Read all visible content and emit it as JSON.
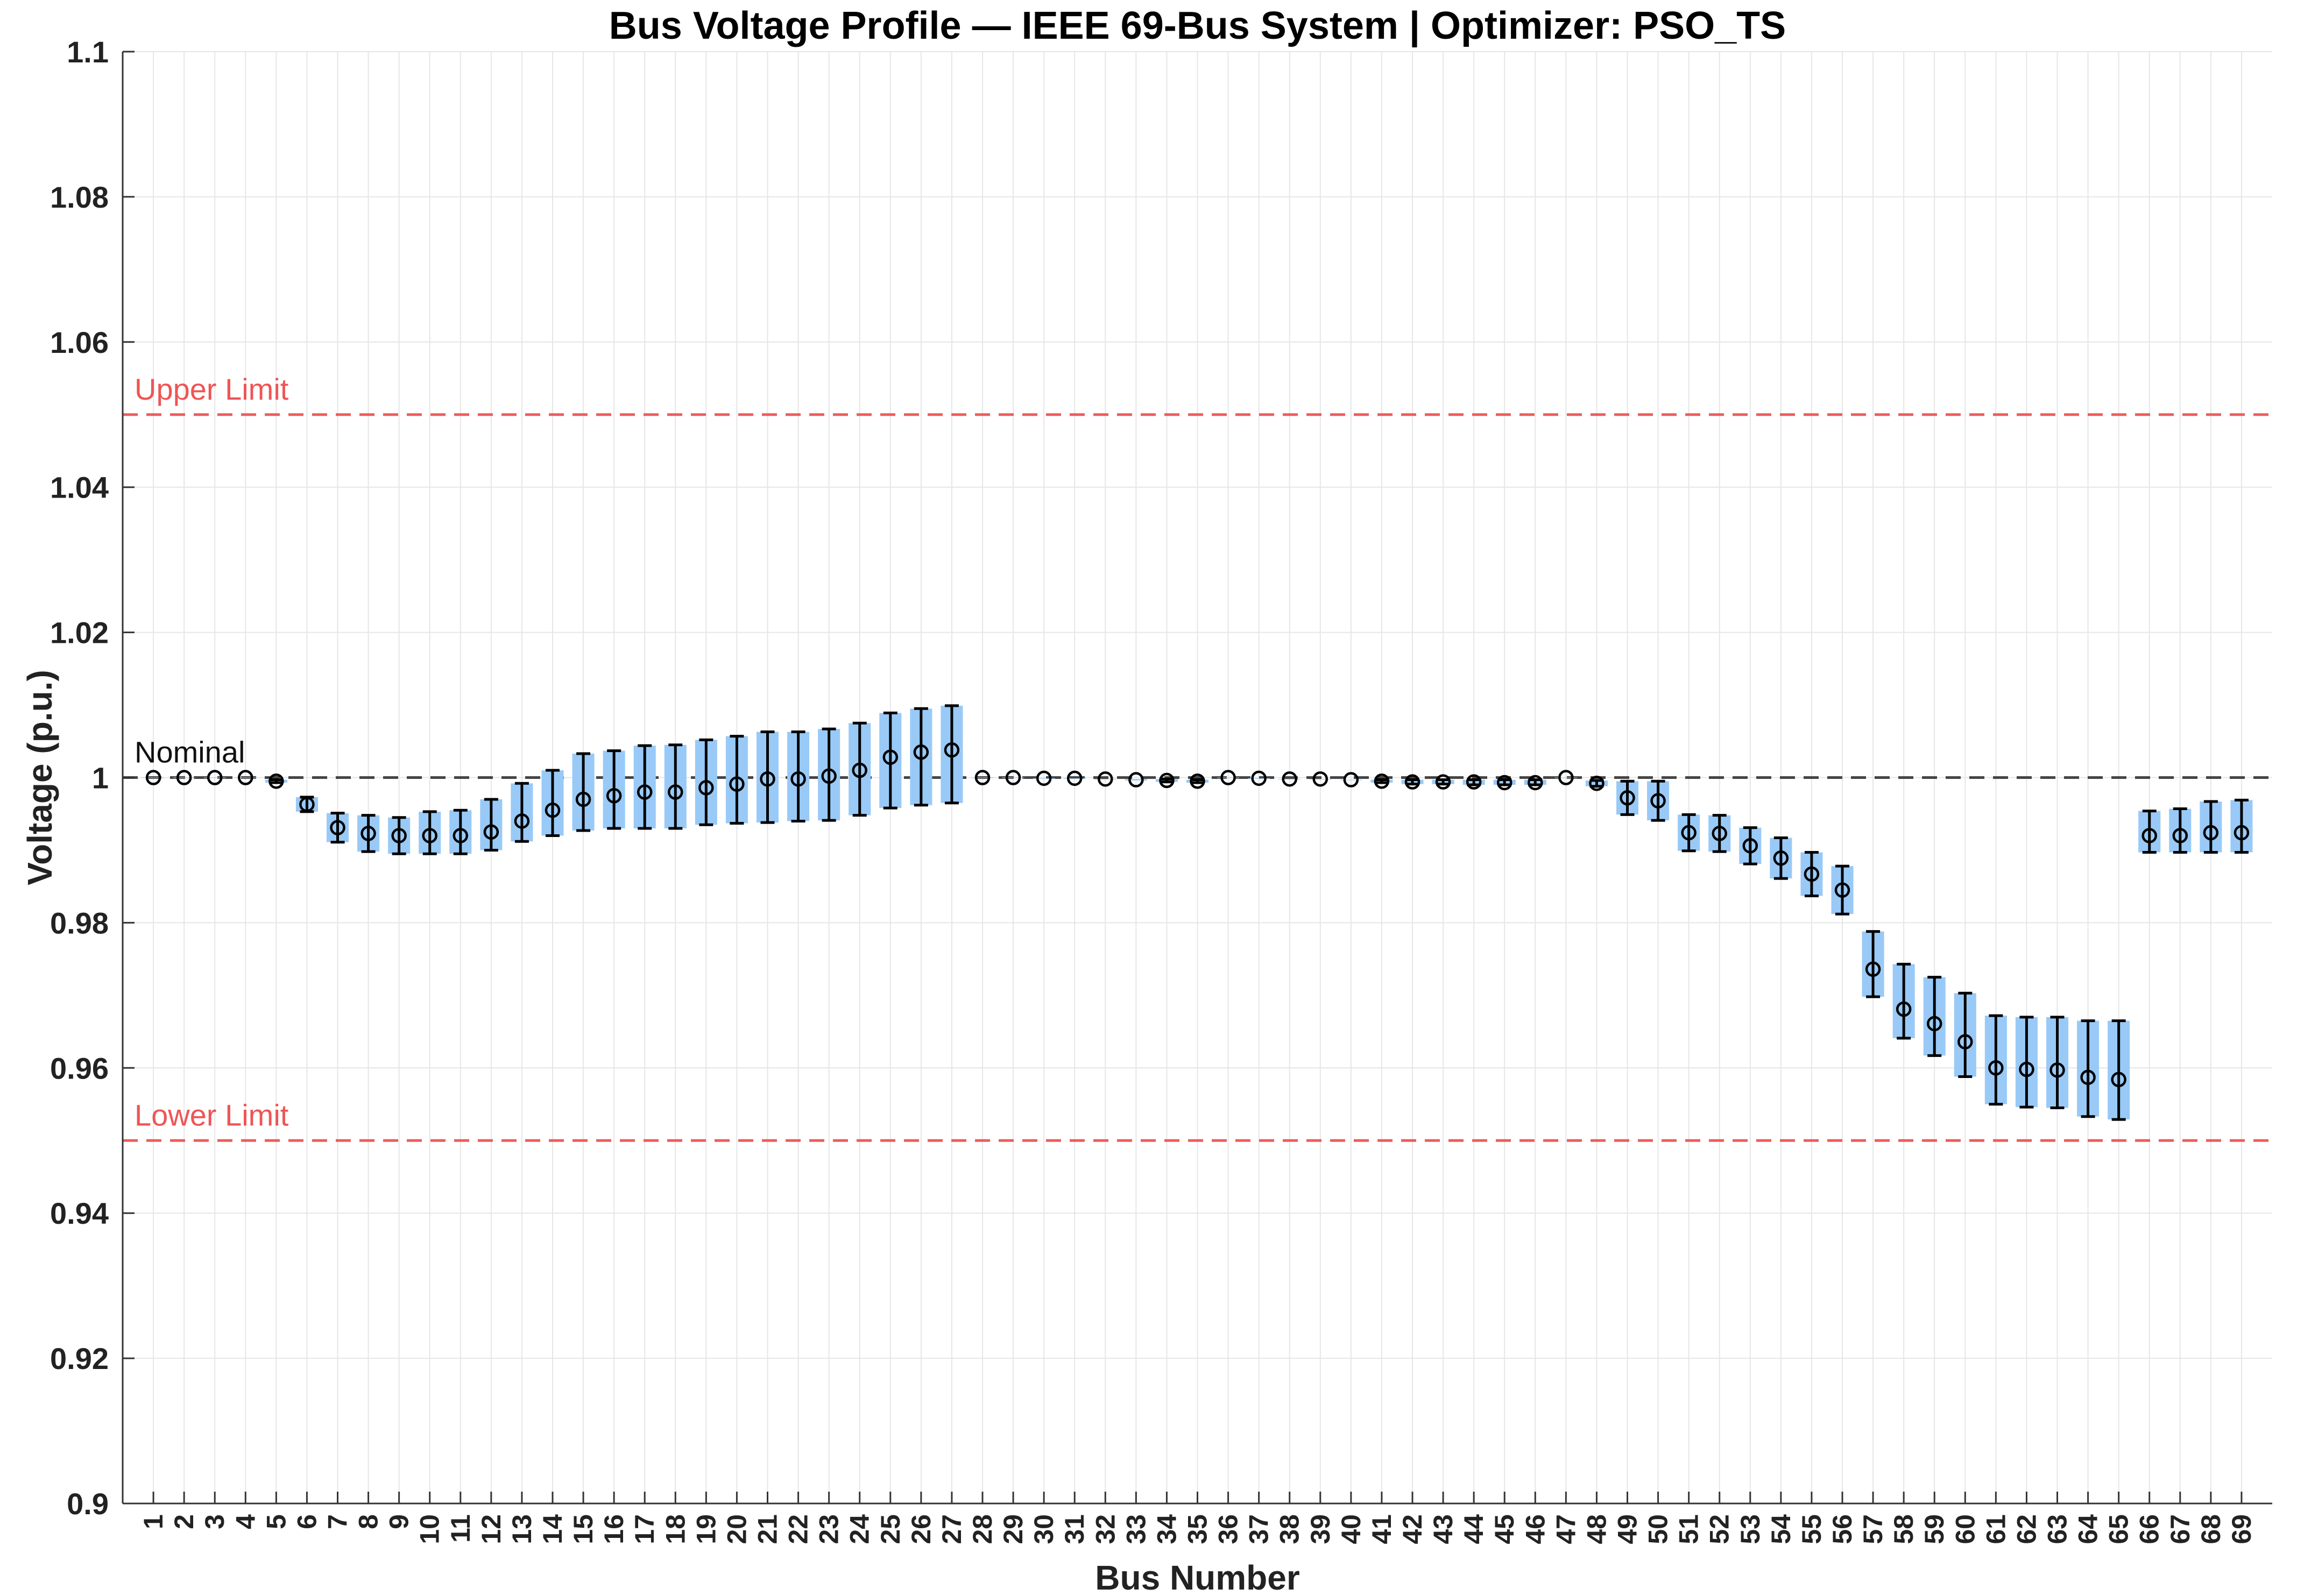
{
  "chart_data": {
    "type": "errorbar",
    "title": "Bus Voltage Profile — IEEE 69-Bus System | Optimizer: PSO_TS",
    "xlabel": "Bus Number",
    "ylabel": "Voltage (p.u.)",
    "ylim": [
      0.9,
      1.1
    ],
    "yticks": [
      "0.9",
      "0.92",
      "0.94",
      "0.96",
      "0.98",
      "1",
      "1.02",
      "1.04",
      "1.06",
      "1.08",
      "1.1"
    ],
    "grid": true,
    "colors": {
      "band": "#99caf7",
      "errorbar": "#000000",
      "limit": "#ee5555",
      "nominal": "#333333"
    },
    "reference_lines": [
      {
        "label": "Upper Limit",
        "value": 1.05
      },
      {
        "label": "Nominal",
        "value": 1.0
      },
      {
        "label": "Lower Limit",
        "value": 0.95
      }
    ],
    "x": [
      1,
      2,
      3,
      4,
      5,
      6,
      7,
      8,
      9,
      10,
      11,
      12,
      13,
      14,
      15,
      16,
      17,
      18,
      19,
      20,
      21,
      22,
      23,
      24,
      25,
      26,
      27,
      28,
      29,
      30,
      31,
      32,
      33,
      34,
      35,
      36,
      37,
      38,
      39,
      40,
      41,
      42,
      43,
      44,
      45,
      46,
      47,
      48,
      49,
      50,
      51,
      52,
      53,
      54,
      55,
      56,
      57,
      58,
      59,
      60,
      61,
      62,
      63,
      64,
      65,
      66,
      67,
      68,
      69
    ],
    "mean": [
      1.0,
      1.0,
      1.0,
      1.0,
      0.9995,
      0.9963,
      0.9931,
      0.9923,
      0.992,
      0.992,
      0.992,
      0.9925,
      0.994,
      0.9955,
      0.997,
      0.9975,
      0.998,
      0.998,
      0.9986,
      0.9991,
      0.9998,
      0.9998,
      1.0002,
      1.001,
      1.0028,
      1.0035,
      1.0038,
      1.0,
      1.0,
      0.9999,
      0.9999,
      0.9998,
      0.9997,
      0.9996,
      0.9995,
      1.0,
      0.9999,
      0.9998,
      0.9998,
      0.9997,
      0.9995,
      0.9994,
      0.9994,
      0.9994,
      0.9993,
      0.9993,
      1.0,
      0.9992,
      0.9972,
      0.9968,
      0.9924,
      0.9923,
      0.9906,
      0.9889,
      0.9867,
      0.9845,
      0.9736,
      0.9681,
      0.9661,
      0.9636,
      0.96,
      0.9598,
      0.9597,
      0.9587,
      0.9584,
      0.992,
      0.992,
      0.9924,
      0.9924
    ],
    "lower": [
      1.0,
      1.0,
      1.0,
      1.0,
      0.9993,
      0.9953,
      0.9911,
      0.9898,
      0.9895,
      0.9895,
      0.9895,
      0.99,
      0.9912,
      0.992,
      0.9927,
      0.993,
      0.993,
      0.993,
      0.9935,
      0.9937,
      0.9938,
      0.994,
      0.9941,
      0.9948,
      0.9958,
      0.9962,
      0.9965,
      1.0,
      1.0,
      0.9999,
      0.9999,
      0.9998,
      0.9996,
      0.9994,
      0.9993,
      1.0,
      0.9999,
      0.9998,
      0.9998,
      0.9997,
      0.9993,
      0.9991,
      0.9991,
      0.999,
      0.999,
      0.999,
      1.0,
      0.9988,
      0.9949,
      0.9941,
      0.9899,
      0.9898,
      0.9881,
      0.9861,
      0.9837,
      0.9812,
      0.9698,
      0.9641,
      0.9617,
      0.9588,
      0.955,
      0.9546,
      0.9545,
      0.9533,
      0.9529,
      0.9897,
      0.9897,
      0.9897,
      0.9897
    ],
    "upper": [
      1.0,
      1.0,
      1.0,
      1.0,
      0.9997,
      0.9973,
      0.9951,
      0.9948,
      0.9945,
      0.9953,
      0.9955,
      0.997,
      0.9992,
      1.001,
      1.0033,
      1.0037,
      1.0044,
      1.0045,
      1.0052,
      1.0057,
      1.0063,
      1.0063,
      1.0067,
      1.0075,
      1.0089,
      1.0095,
      1.0099,
      1.0,
      1.0,
      0.9999,
      0.9999,
      0.9998,
      0.9998,
      0.9998,
      0.9997,
      1.0,
      0.9999,
      0.9998,
      0.9998,
      0.9997,
      0.9997,
      0.9997,
      0.9997,
      0.9997,
      0.9997,
      0.9997,
      1.0,
      0.9996,
      0.9995,
      0.9995,
      0.9949,
      0.9948,
      0.9931,
      0.9917,
      0.9897,
      0.9878,
      0.9788,
      0.9743,
      0.9725,
      0.9703,
      0.9672,
      0.967,
      0.967,
      0.9665,
      0.9665,
      0.9954,
      0.9957,
      0.9967,
      0.9969
    ]
  }
}
